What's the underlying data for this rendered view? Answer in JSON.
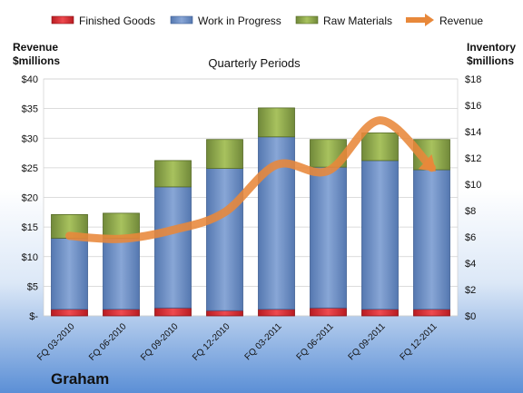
{
  "company": "Graham",
  "chart_data": {
    "type": "bar",
    "stacked": true,
    "title": "Quarterly Periods",
    "categories": [
      "FQ 03-2010",
      "FQ 06-2010",
      "FQ 09-2010",
      "FQ 12-2010",
      "FQ 03-2011",
      "FQ 06-2011",
      "FQ 09-2011",
      "FQ 12-2011"
    ],
    "left_axis_label": [
      "Revenue",
      "$millions"
    ],
    "right_axis_label": [
      "Inventory",
      "$millions"
    ],
    "left_ticks": [
      "$-",
      "$5",
      "$10",
      "$15",
      "$20",
      "$25",
      "$30",
      "$35",
      "$40"
    ],
    "right_ticks": [
      "$0",
      "$2",
      "$4",
      "$6",
      "$8",
      "$10",
      "$12",
      "$14",
      "$16",
      "$18"
    ],
    "left_ylim": [
      0,
      40
    ],
    "right_ylim": [
      0,
      18
    ],
    "series": [
      {
        "name": "Finished Goods",
        "axis": "right",
        "color": "#d9262c",
        "values": [
          0.5,
          0.5,
          0.6,
          0.4,
          0.5,
          0.6,
          0.5,
          0.5
        ]
      },
      {
        "name": "Work in Progress",
        "axis": "right",
        "color": "#6e8fc3",
        "values": [
          5.4,
          5.4,
          9.2,
          10.8,
          13.1,
          10.7,
          11.3,
          10.6
        ]
      },
      {
        "name": "Raw Materials",
        "axis": "right",
        "color": "#8faa4a",
        "values": [
          1.8,
          1.9,
          2.0,
          2.2,
          2.2,
          2.1,
          2.1,
          2.3
        ]
      },
      {
        "name": "Revenue",
        "axis": "left",
        "type": "line",
        "color": "#e8883a",
        "values": [
          13.5,
          13.0,
          14.5,
          17.5,
          25.5,
          24.5,
          33.0,
          25.0
        ]
      }
    ],
    "grid": true,
    "legend": "top"
  }
}
